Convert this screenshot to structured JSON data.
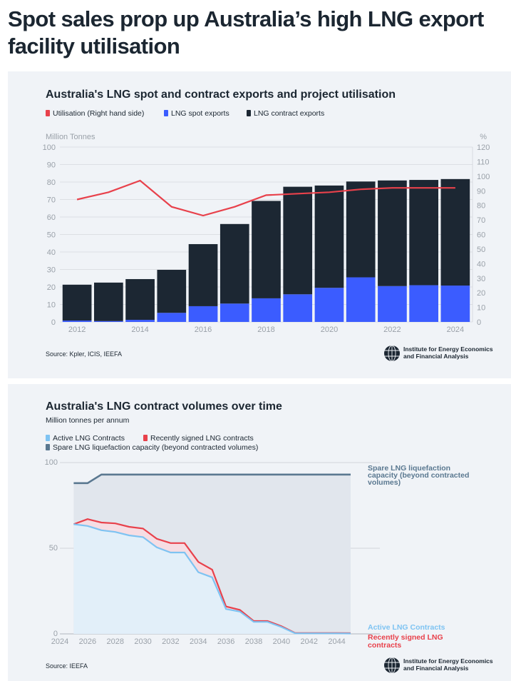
{
  "headline": "Spot sales prop up Australia’s high LNG export facility utilisation",
  "colors": {
    "contract": "#1c2733",
    "spot": "#3b5cff",
    "utilisation": "#e8414b",
    "active": "#7ec3f2",
    "active_fill": "#e2eff9",
    "recent": "#e8414b",
    "recent_fill": "#f6dde3",
    "spare": "#5a7890",
    "spare_fill": "#e1e6ed",
    "grid": "#c8ccd2",
    "axis_text": "#9aa1a9"
  },
  "chart1": {
    "title": "Australia's LNG spot and contract exports and project utilisation",
    "source": "Source: Kpler, ICIS, IEEFA",
    "logo_text": [
      "Institute for Energy Economics",
      "and Financial Analysis"
    ],
    "chart_data": {
      "type": "bar",
      "title": "Australia's LNG spot and contract exports and project utilisation",
      "ylabel": "Million Tonnes",
      "y2label": "%",
      "ylim": [
        0,
        100
      ],
      "y2lim": [
        0,
        120
      ],
      "yticks": [
        0,
        10,
        20,
        30,
        40,
        50,
        60,
        70,
        80,
        90,
        100
      ],
      "y2ticks": [
        0,
        10,
        20,
        30,
        40,
        50,
        60,
        70,
        80,
        90,
        100,
        110,
        120
      ],
      "stacked": true,
      "categories": [
        2012,
        2013,
        2014,
        2015,
        2016,
        2017,
        2018,
        2019,
        2020,
        2021,
        2022,
        2023,
        2024
      ],
      "xtick_labels": [
        "2012",
        "2014",
        "2016",
        "2018",
        "2020",
        "2022",
        "2024"
      ],
      "legend_position": "top-left",
      "grid": true,
      "series": [
        {
          "name": "LNG spot exports",
          "type": "bar",
          "axis": "left",
          "values": [
            0.8,
            0.5,
            1.2,
            5.2,
            9.0,
            10.5,
            13.5,
            15.8,
            19.5,
            25.5,
            20.5,
            21.0,
            20.8
          ]
        },
        {
          "name": "LNG contract exports",
          "type": "bar",
          "axis": "left",
          "values": [
            20.5,
            22.0,
            23.3,
            24.6,
            35.5,
            45.5,
            55.7,
            61.5,
            58.5,
            54.8,
            60.4,
            60.2,
            60.9
          ]
        },
        {
          "name": "Utilisation (Right hand side)",
          "type": "line",
          "axis": "right",
          "values": [
            84,
            89,
            97,
            79,
            73,
            79,
            87,
            88,
            89,
            91,
            92,
            92,
            92
          ]
        }
      ]
    }
  },
  "chart2": {
    "title": "Australia's LNG contract volumes over time",
    "subtitle": "Million tonnes per annum",
    "source": "Source: IEEFA",
    "logo_text": [
      "Institute for Energy Economics",
      "and Financial Analysis"
    ],
    "end_labels": {
      "spare": [
        "Spare LNG liquefaction",
        "capacity (beyond contracted",
        "volumes)"
      ],
      "active": [
        "Active LNG Contracts"
      ],
      "recent": [
        "Recently signed LNG",
        "contracts"
      ]
    },
    "chart_data": {
      "type": "area",
      "title": "Australia's LNG contract volumes over time",
      "ylabel": "Million tonnes per annum",
      "ylim": [
        0,
        100
      ],
      "yticks": [
        0,
        50,
        100
      ],
      "xlim": [
        2024,
        2045
      ],
      "xtick_labels": [
        "2024",
        "2026",
        "2028",
        "2030",
        "2032",
        "2034",
        "2036",
        "2038",
        "2040",
        "2042",
        "2044"
      ],
      "legend_position": "top-left",
      "x": [
        2025,
        2026,
        2027,
        2028,
        2029,
        2030,
        2031,
        2032,
        2033,
        2034,
        2035,
        2036,
        2037,
        2038,
        2039,
        2040,
        2041,
        2042,
        2043,
        2044,
        2045
      ],
      "series": [
        {
          "name": "Active LNG Contracts",
          "values": [
            64,
            63,
            60.5,
            59.5,
            57.5,
            56.5,
            50.5,
            47.5,
            47.5,
            36,
            33,
            14.5,
            13,
            7,
            7,
            4,
            0.3,
            0.3,
            0.3,
            0.3,
            0.2
          ]
        },
        {
          "name": "Recently signed LNG contracts",
          "values": [
            64,
            67,
            65,
            64.5,
            62.5,
            61.5,
            55.5,
            53,
            53,
            42,
            37.5,
            16,
            14,
            7.5,
            7.5,
            4.5,
            0.5,
            0.5,
            0.5,
            0.5,
            0.4
          ]
        },
        {
          "name": "Spare LNG liquefaction capacity (beyond contracted volumes)",
          "values": [
            88,
            88,
            93,
            93,
            93,
            93,
            93,
            93,
            93,
            93,
            93,
            93,
            93,
            93,
            93,
            93,
            93,
            93,
            93,
            93,
            93
          ]
        }
      ]
    }
  }
}
